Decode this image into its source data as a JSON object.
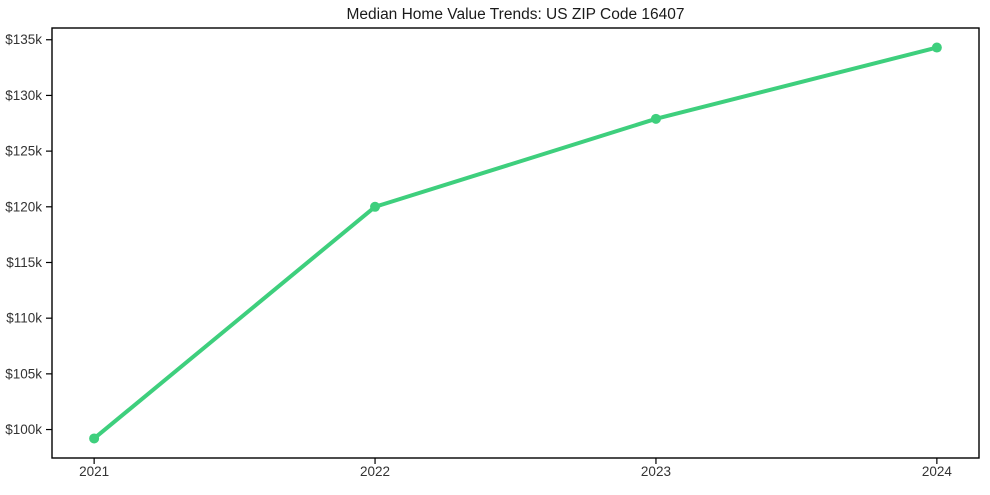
{
  "chart_data": {
    "type": "line",
    "title": "Median Home Value Trends: US ZIP Code 16407",
    "x": [
      2021,
      2022,
      2023,
      2024
    ],
    "x_tick_labels": [
      "2021",
      "2022",
      "2023",
      "2024"
    ],
    "series": [
      {
        "name": "Median Home Value",
        "values": [
          99200,
          120000,
          127900,
          134300
        ]
      }
    ],
    "y_tick_values": [
      100000,
      105000,
      110000,
      115000,
      120000,
      125000,
      130000,
      135000
    ],
    "y_tick_labels": [
      "$100k",
      "$105k",
      "$110k",
      "$115k",
      "$120k",
      "$125k",
      "$130k",
      "$135k"
    ],
    "xlim": [
      2020.85,
      2024.15
    ],
    "ylim": [
      97445,
      136055
    ],
    "xlabel": "",
    "ylabel": "",
    "grid": false,
    "legend_position": "none",
    "colors": {
      "line": "#3ecf7d",
      "marker": "#3ecf7d",
      "spine": "#000000",
      "tick_label": "#333333",
      "title": "#1a1a1a",
      "background": "#ffffff"
    }
  }
}
